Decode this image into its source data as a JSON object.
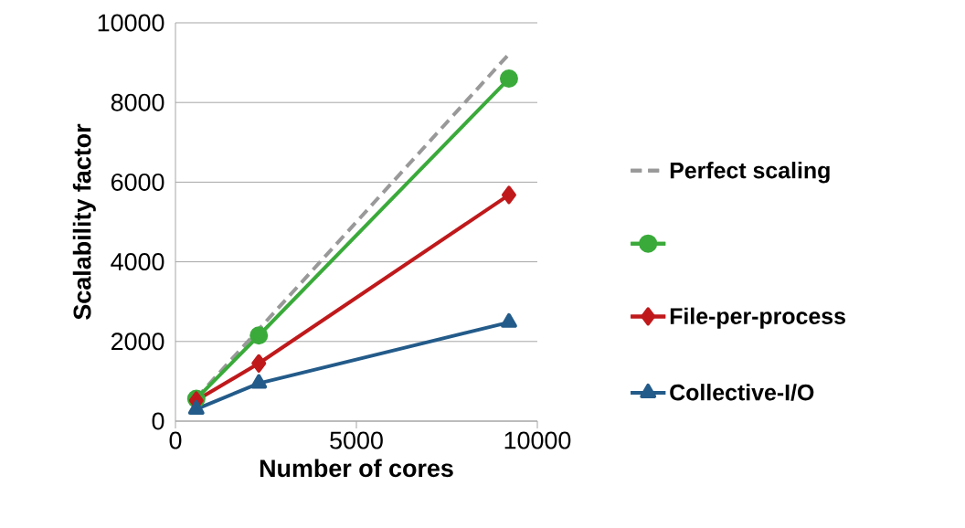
{
  "chart_data": {
    "type": "line",
    "xlabel": "Number of cores",
    "ylabel": "Scalability factor",
    "x": [
      576,
      2304,
      9216
    ],
    "series": [
      {
        "name": "Perfect scaling",
        "color": "#999999",
        "values": [
          576,
          2304,
          9216
        ],
        "marker": "none",
        "line_style": "dashed"
      },
      {
        "color": "#3aaa3a",
        "values": [
          560,
          2150,
          8600
        ],
        "marker": "circle",
        "line_style": "solid"
      },
      {
        "name": "File-per-process",
        "color": "#c0191b",
        "values": [
          520,
          1450,
          5680
        ],
        "marker": "diamond",
        "line_style": "solid"
      },
      {
        "name": "Collective-I/O",
        "color": "#235b8a",
        "values": [
          300,
          950,
          2480
        ],
        "marker": "triangle",
        "line_style": "solid"
      }
    ],
    "xlim": [
      0,
      10000
    ],
    "ylim": [
      0,
      10000
    ],
    "xticks": [
      0,
      5000,
      10000
    ],
    "yticks": [
      0,
      2000,
      4000,
      6000,
      8000,
      10000
    ],
    "grid": "y",
    "legend": "right"
  }
}
